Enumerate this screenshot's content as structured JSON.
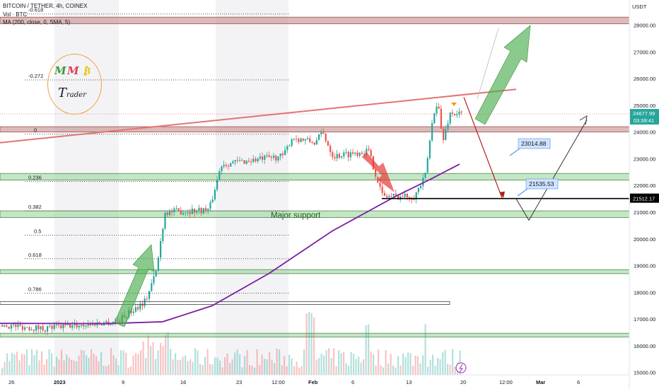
{
  "legend": {
    "symbol": "BITCOIN / TETHER, 4h, COINEX",
    "volume": "Vol · BTC",
    "ma": "MA (200, close, 0, SMA, 5)"
  },
  "price_axis": {
    "currency": "USDT",
    "labels": [
      "28000.00",
      "27000.00",
      "26000.00",
      "25000.00",
      "24000.00",
      "23000.00",
      "22000.00",
      "21000.00",
      "20000.00",
      "19000.00",
      "18000.00",
      "17000.00",
      "16000.00",
      "15000.00"
    ],
    "current_price": "24677.99",
    "countdown": "03:39:41",
    "line_price": "21512.17"
  },
  "time_axis": [
    "26",
    "2023",
    "9",
    "16",
    "23",
    "12:00",
    "Feb",
    "6",
    "13",
    "20",
    "12:00",
    "Mar",
    "6"
  ],
  "fib_levels": [
    "-0.618",
    "-0.272",
    "0",
    "0.236",
    "0.382",
    "0.5",
    "0.618",
    "0.786"
  ],
  "callouts": [
    "23014.88",
    "21535.53"
  ],
  "annotation": "Major support",
  "logo": {
    "letters": [
      "M",
      "M",
      "₿"
    ],
    "word_initial": "T",
    "word_rest": "rader"
  },
  "colors": {
    "up": "#26a69a",
    "down": "#ef5350",
    "ma": "#7b1fa2",
    "trendline": "#e57373",
    "support_zone": "#c8e6c9",
    "resistance_zone": "#d7aeae"
  },
  "chart_data": {
    "type": "candlestick",
    "title": "BITCOIN / TETHER, 4h, COINEX",
    "ylim": [
      15000,
      28500
    ],
    "y_ticks": [
      15000,
      16000,
      17000,
      18000,
      19000,
      20000,
      21000,
      22000,
      23000,
      24000,
      25000,
      26000,
      27000,
      28000
    ],
    "x_ticks": [
      "26",
      "2023",
      "9",
      "16",
      "23",
      "12:00",
      "Feb",
      "6",
      "13",
      "20",
      "12:00",
      "Mar",
      "6"
    ],
    "series": [
      {
        "name": "MA (200, close, 0, SMA, 5)",
        "points": [
          [
            0,
            16840
          ],
          [
            150,
            16830
          ],
          [
            230,
            16900
          ],
          [
            300,
            17500
          ],
          [
            380,
            18700
          ],
          [
            470,
            20300
          ],
          [
            560,
            21600
          ],
          [
            610,
            22250
          ],
          [
            650,
            22800
          ]
        ]
      }
    ],
    "price_path": [
      [
        0,
        16780
      ],
      [
        60,
        16650
      ],
      [
        120,
        16800
      ],
      [
        165,
        16920
      ],
      [
        205,
        17700
      ],
      [
        220,
        18800
      ],
      [
        232,
        21000
      ],
      [
        295,
        21100
      ],
      [
        312,
        22800
      ],
      [
        400,
        23100
      ],
      [
        412,
        23800
      ],
      [
        445,
        23600
      ],
      [
        455,
        24000
      ],
      [
        470,
        23100
      ],
      [
        520,
        23300
      ],
      [
        540,
        21600
      ],
      [
        585,
        21600
      ],
      [
        600,
        22300
      ],
      [
        612,
        24700
      ],
      [
        618,
        25200
      ],
      [
        625,
        23600
      ],
      [
        635,
        24700
      ],
      [
        650,
        24677
      ]
    ],
    "zones": [
      {
        "from": 28050,
        "to": 28300,
        "kind": "resistance"
      },
      {
        "from": 24000,
        "to": 24200,
        "kind": "resistance"
      },
      {
        "from": 22200,
        "to": 22450,
        "kind": "support"
      },
      {
        "from": 20800,
        "to": 21050,
        "kind": "support"
      },
      {
        "from": 18700,
        "to": 18850,
        "kind": "support"
      },
      {
        "from": 16330,
        "to": 16470,
        "kind": "support"
      }
    ],
    "fibonacci": [
      {
        "ratio": "-0.618",
        "price": 28420
      },
      {
        "ratio": "-0.272",
        "price": 25950
      },
      {
        "ratio": "0",
        "price": 23920
      },
      {
        "ratio": "0.236",
        "price": 22150
      },
      {
        "ratio": "0.382",
        "price": 21050
      },
      {
        "ratio": "0.5",
        "price": 20140
      },
      {
        "ratio": "0.618",
        "price": 19260
      },
      {
        "ratio": "0.786",
        "price": 17970
      }
    ],
    "horizontal_line": 21512.17,
    "trendline": [
      [
        0,
        23600
      ],
      [
        730,
        25600
      ]
    ],
    "projections": [
      {
        "name": "red",
        "points": [
          [
            656,
            25300
          ],
          [
            710,
            21535
          ]
        ]
      },
      {
        "name": "grey",
        "points": [
          [
            730,
            21500
          ],
          [
            748,
            20700
          ],
          [
            830,
            24450
          ]
        ]
      }
    ],
    "callouts": [
      {
        "text": "23014.88",
        "price": 23014.88
      },
      {
        "text": "21535.53",
        "price": 21535.53
      }
    ]
  }
}
